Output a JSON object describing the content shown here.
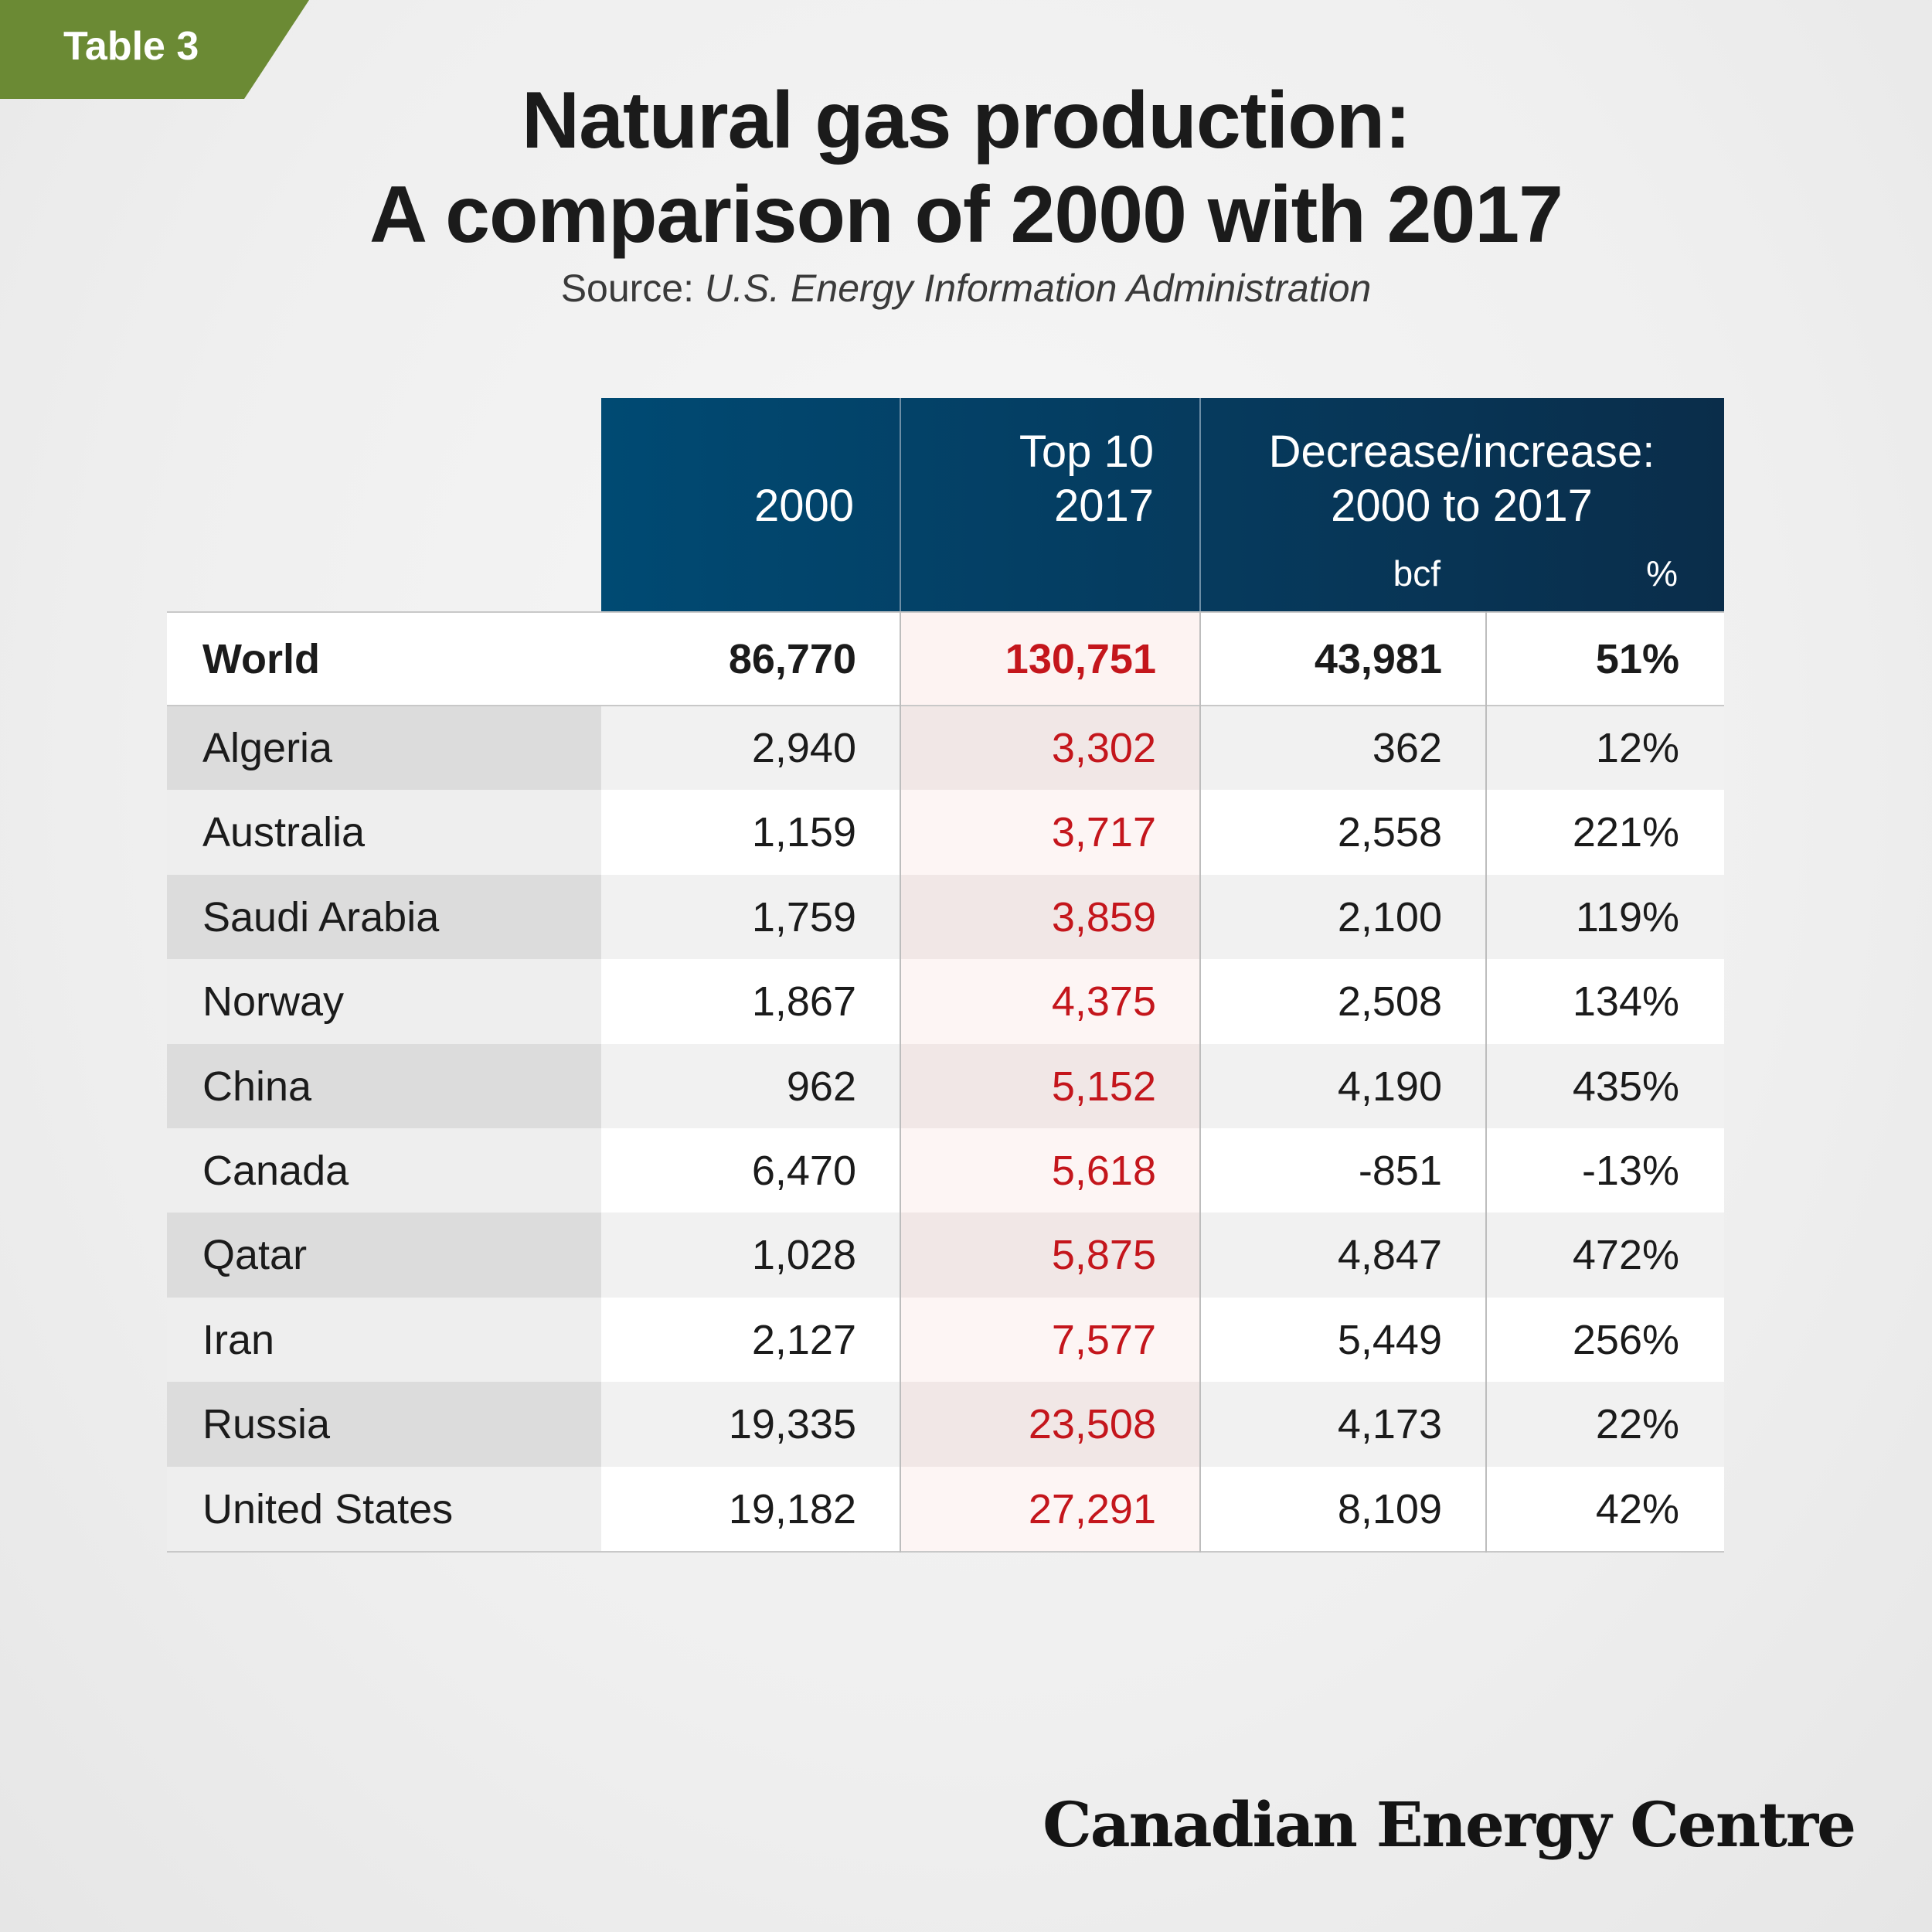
{
  "tag_label": "Table 3",
  "title_line1": "Natural gas production:",
  "title_line2": "A comparison of 2000 with 2017",
  "source_prefix": "Source: ",
  "source_name": "U.S. Energy Information Administration",
  "brand": "Canadian Energy Centre",
  "colors": {
    "tag": "#6b8a34",
    "header": "#004a73",
    "highlight_text": "#c4161c"
  },
  "chart_data": {
    "type": "table",
    "title": "Natural gas production: A comparison of 2000 with 2017",
    "columns": {
      "c2000": "2000",
      "c2017_top": "Top 10",
      "c2017": "2017",
      "change_line1": "Decrease/increase:",
      "change_line2": "2000 to 2017",
      "unit_bcf": "bcf",
      "unit_pct": "%"
    },
    "world": {
      "name": "World",
      "y2000": "86,770",
      "y2017": "130,751",
      "change_bcf": "43,981",
      "change_pct": "51%"
    },
    "rows": [
      {
        "name": "Algeria",
        "y2000": "2,940",
        "y2017": "3,302",
        "change_bcf": "362",
        "change_pct": "12%"
      },
      {
        "name": "Australia",
        "y2000": "1,159",
        "y2017": "3,717",
        "change_bcf": "2,558",
        "change_pct": "221%"
      },
      {
        "name": "Saudi Arabia",
        "y2000": "1,759",
        "y2017": "3,859",
        "change_bcf": "2,100",
        "change_pct": "119%"
      },
      {
        "name": "Norway",
        "y2000": "1,867",
        "y2017": "4,375",
        "change_bcf": "2,508",
        "change_pct": "134%"
      },
      {
        "name": "China",
        "y2000": "962",
        "y2017": "5,152",
        "change_bcf": "4,190",
        "change_pct": "435%"
      },
      {
        "name": "Canada",
        "y2000": "6,470",
        "y2017": "5,618",
        "change_bcf": "-851",
        "change_pct": "-13%"
      },
      {
        "name": "Qatar",
        "y2000": "1,028",
        "y2017": "5,875",
        "change_bcf": "4,847",
        "change_pct": "472%"
      },
      {
        "name": "Iran",
        "y2000": "2,127",
        "y2017": "7,577",
        "change_bcf": "5,449",
        "change_pct": "256%"
      },
      {
        "name": "Russia",
        "y2000": "19,335",
        "y2017": "23,508",
        "change_bcf": "4,173",
        "change_pct": "22%"
      },
      {
        "name": "United States",
        "y2000": "19,182",
        "y2017": "27,291",
        "change_bcf": "8,109",
        "change_pct": "42%"
      }
    ]
  }
}
